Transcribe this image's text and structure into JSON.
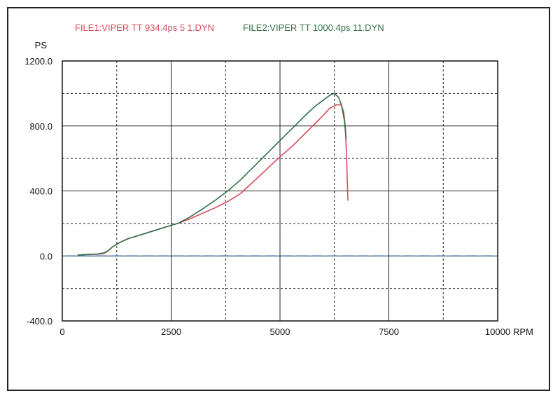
{
  "chart_data": {
    "type": "line",
    "title": "",
    "xlabel": "RPM",
    "ylabel": "PS",
    "xlim": [
      0,
      10000
    ],
    "ylim": [
      -400,
      1200
    ],
    "x_ticks": [
      "0",
      "2500",
      "5000",
      "7500",
      "10000"
    ],
    "y_ticks": [
      "1200.0",
      "800.0",
      "400.0",
      "0.0",
      "-400.0"
    ],
    "grid": true,
    "legend_position": "top",
    "series": [
      {
        "name": "FILE1:VIPER TT 934.4ps 5 1.DYN",
        "color": "#d94a5a",
        "x": [
          350,
          500,
          650,
          800,
          950,
          1050,
          1150,
          1300,
          1500,
          1800,
          2100,
          2400,
          2650,
          2900,
          3200,
          3500,
          3800,
          4100,
          4400,
          4700,
          5000,
          5300,
          5600,
          5900,
          6150,
          6300,
          6400,
          6460,
          6500,
          6530,
          6560
        ],
        "values": [
          5,
          8,
          10,
          10,
          15,
          30,
          55,
          80,
          105,
          130,
          155,
          180,
          200,
          225,
          260,
          295,
          335,
          385,
          460,
          535,
          610,
          680,
          760,
          840,
          910,
          930,
          930,
          890,
          800,
          600,
          340
        ]
      },
      {
        "name": "FILE2:VIPER TT 1000.4ps 11.DYN",
        "color": "#2e7048",
        "x": [
          350,
          500,
          650,
          800,
          950,
          1050,
          1150,
          1300,
          1500,
          1800,
          2100,
          2400,
          2650,
          2900,
          3200,
          3500,
          3800,
          4100,
          4400,
          4700,
          5000,
          5300,
          5600,
          5800,
          6000,
          6150,
          6250,
          6350,
          6420,
          6480,
          6520
        ],
        "values": [
          5,
          8,
          10,
          12,
          18,
          32,
          55,
          80,
          105,
          130,
          155,
          180,
          200,
          235,
          285,
          340,
          400,
          470,
          550,
          630,
          710,
          790,
          870,
          920,
          960,
          990,
          1000,
          975,
          920,
          830,
          720
        ]
      }
    ],
    "reference_line": {
      "y": 0,
      "color": "#3a6fb5",
      "style": "dashed"
    }
  }
}
